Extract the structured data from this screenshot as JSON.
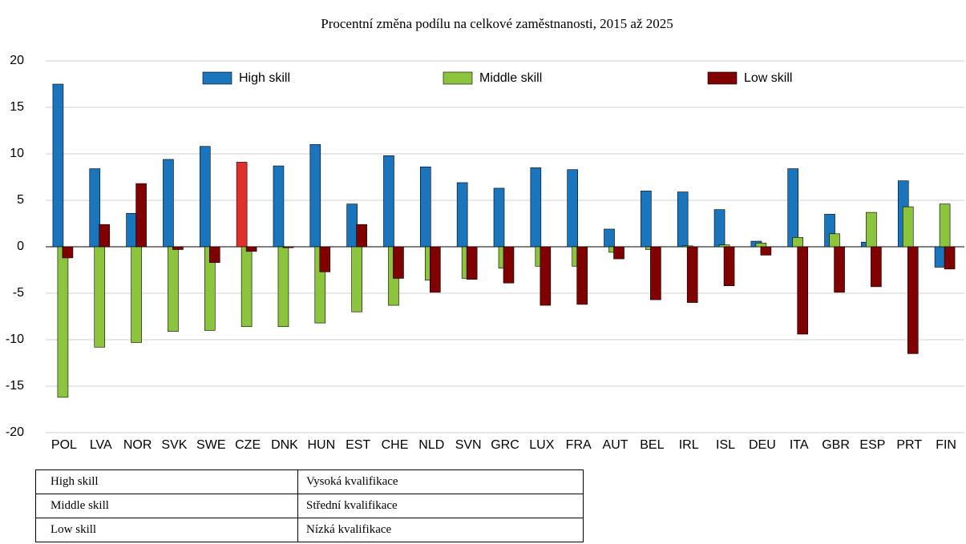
{
  "chart_data": {
    "type": "bar",
    "title": "Procentní změna podílu na celkové zaměstnanosti, 2015 až 2025",
    "categories": [
      "POL",
      "LVA",
      "NOR",
      "SVK",
      "SWE",
      "CZE",
      "DNK",
      "HUN",
      "EST",
      "CHE",
      "NLD",
      "SVN",
      "GRC",
      "LUX",
      "FRA",
      "AUT",
      "BEL",
      "IRL",
      "ISL",
      "DEU",
      "ITA",
      "GBR",
      "ESP",
      "PRT",
      "FIN"
    ],
    "series": [
      {
        "name": "High skill",
        "color": "#1a75bc",
        "colors": [
          "#1a75bc",
          "#1a75bc",
          "#1a75bc",
          "#1a75bc",
          "#1a75bc",
          "#e0302e",
          "#1a75bc",
          "#1a75bc",
          "#1a75bc",
          "#1a75bc",
          "#1a75bc",
          "#1a75bc",
          "#1a75bc",
          "#1a75bc",
          "#1a75bc",
          "#1a75bc",
          "#1a75bc",
          "#1a75bc",
          "#1a75bc",
          "#1a75bc",
          "#1a75bc",
          "#1a75bc",
          "#1a75bc",
          "#1a75bc",
          "#1a75bc"
        ],
        "values": [
          17.5,
          8.4,
          3.6,
          9.4,
          10.8,
          9.1,
          8.7,
          11.0,
          4.6,
          9.8,
          8.6,
          6.9,
          6.3,
          8.5,
          8.3,
          1.9,
          6.0,
          5.9,
          4.0,
          0.6,
          8.4,
          3.5,
          0.5,
          7.1,
          -2.2
        ]
      },
      {
        "name": "Middle skill",
        "color": "#8cc43e",
        "values": [
          -16.2,
          -10.8,
          -10.3,
          -9.1,
          -9.0,
          -8.6,
          -8.6,
          -8.2,
          -7.0,
          -6.3,
          -3.6,
          -3.4,
          -2.3,
          -2.1,
          -2.1,
          -0.6,
          -0.3,
          0.1,
          0.2,
          0.4,
          1.0,
          1.4,
          3.7,
          4.3,
          4.6
        ]
      },
      {
        "name": "Low skill",
        "color": "#800000",
        "values": [
          -1.2,
          2.4,
          6.8,
          -0.3,
          -1.7,
          -0.5,
          -0.1,
          -2.7,
          2.4,
          -3.4,
          -4.9,
          -3.5,
          -3.9,
          -6.3,
          -6.2,
          -1.3,
          -5.7,
          -6.0,
          -4.2,
          -0.9,
          -9.4,
          -4.9,
          -4.3,
          -11.5,
          -2.4
        ]
      }
    ],
    "ylim": [
      -20,
      20
    ],
    "yticks": [
      -20,
      -15,
      -10,
      -5,
      0,
      5,
      10,
      15,
      20
    ],
    "grid": true,
    "legend": "top"
  },
  "table": {
    "rows": [
      [
        "High skill",
        "Vysoká kvalifikace"
      ],
      [
        "Middle skill",
        "Střední kvalifikace"
      ],
      [
        "Low skill",
        "Nízká kvalifikace"
      ]
    ]
  }
}
